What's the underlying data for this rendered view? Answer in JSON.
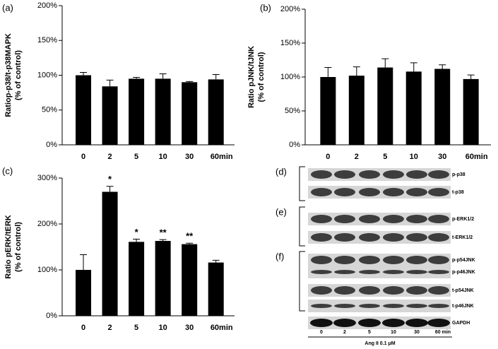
{
  "chart_data": [
    {
      "type": "bar",
      "panel": "(a)",
      "ylabel": [
        "Ratiop-p38/t-p38MAPK",
        "(% of control)"
      ],
      "categories": [
        "0",
        "2",
        "5",
        "10",
        "30",
        "60min"
      ],
      "values": [
        100,
        84,
        95,
        95,
        90,
        94
      ],
      "errors": [
        4,
        9,
        2,
        7,
        1,
        7
      ],
      "color": "#000000",
      "ylim": [
        0,
        200
      ],
      "yticks": [
        {
          "value": 0,
          "label": "0%"
        },
        {
          "value": 50,
          "label": "50%"
        },
        {
          "value": 100,
          "label": "100%"
        },
        {
          "value": 150,
          "label": "150%"
        },
        {
          "value": 200,
          "label": "200%"
        }
      ]
    },
    {
      "type": "bar",
      "panel": "(b)",
      "ylabel": [
        "Ratio pJNK/tJNK",
        "(% of control)"
      ],
      "categories": [
        "0",
        "2",
        "5",
        "10",
        "30",
        "60min"
      ],
      "values": [
        100,
        102,
        114,
        108,
        112,
        97
      ],
      "errors": [
        14,
        13,
        13,
        13,
        6,
        6
      ],
      "color": "#000000",
      "ylim": [
        0,
        200
      ],
      "yticks": [
        {
          "value": 0,
          "label": "0%"
        },
        {
          "value": 50,
          "label": "50%"
        },
        {
          "value": 100,
          "label": "100%"
        },
        {
          "value": 150,
          "label": "150%"
        },
        {
          "value": 200,
          "label": "200%"
        }
      ]
    },
    {
      "type": "bar",
      "panel": "(c)",
      "ylabel": [
        "Ratio pERK/tERK",
        "(% of control)"
      ],
      "categories": [
        "0",
        "2",
        "5",
        "10",
        "30",
        "60min"
      ],
      "values": [
        100,
        270,
        161,
        163,
        156,
        116
      ],
      "errors": [
        33,
        12,
        6,
        3,
        2,
        5
      ],
      "annotations": [
        null,
        "*",
        "*",
        "**",
        "**",
        null
      ],
      "color": "#000000",
      "ylim": [
        0,
        300
      ],
      "yticks": [
        {
          "value": 0,
          "label": "0%"
        },
        {
          "value": 100,
          "label": "100%"
        },
        {
          "value": 200,
          "label": "200%"
        },
        {
          "value": 300,
          "label": "300%"
        }
      ]
    }
  ],
  "blots": {
    "panels": [
      {
        "label": "(d)",
        "rows": [
          "p-p38",
          "t-p38"
        ]
      },
      {
        "label": "(e)",
        "rows": [
          "p-ERK1/2",
          "t-ERK1/2"
        ]
      },
      {
        "label": "(f)",
        "rows": [
          "p-p54JNK",
          "p-p46JNK",
          "t-p54JNK",
          "t-p46JNK"
        ]
      }
    ],
    "loading": "GAPDH",
    "lanes": [
      "0",
      "2",
      "5",
      "10",
      "30",
      "60  min"
    ],
    "treatment": "Ang II  0.1 μM"
  }
}
